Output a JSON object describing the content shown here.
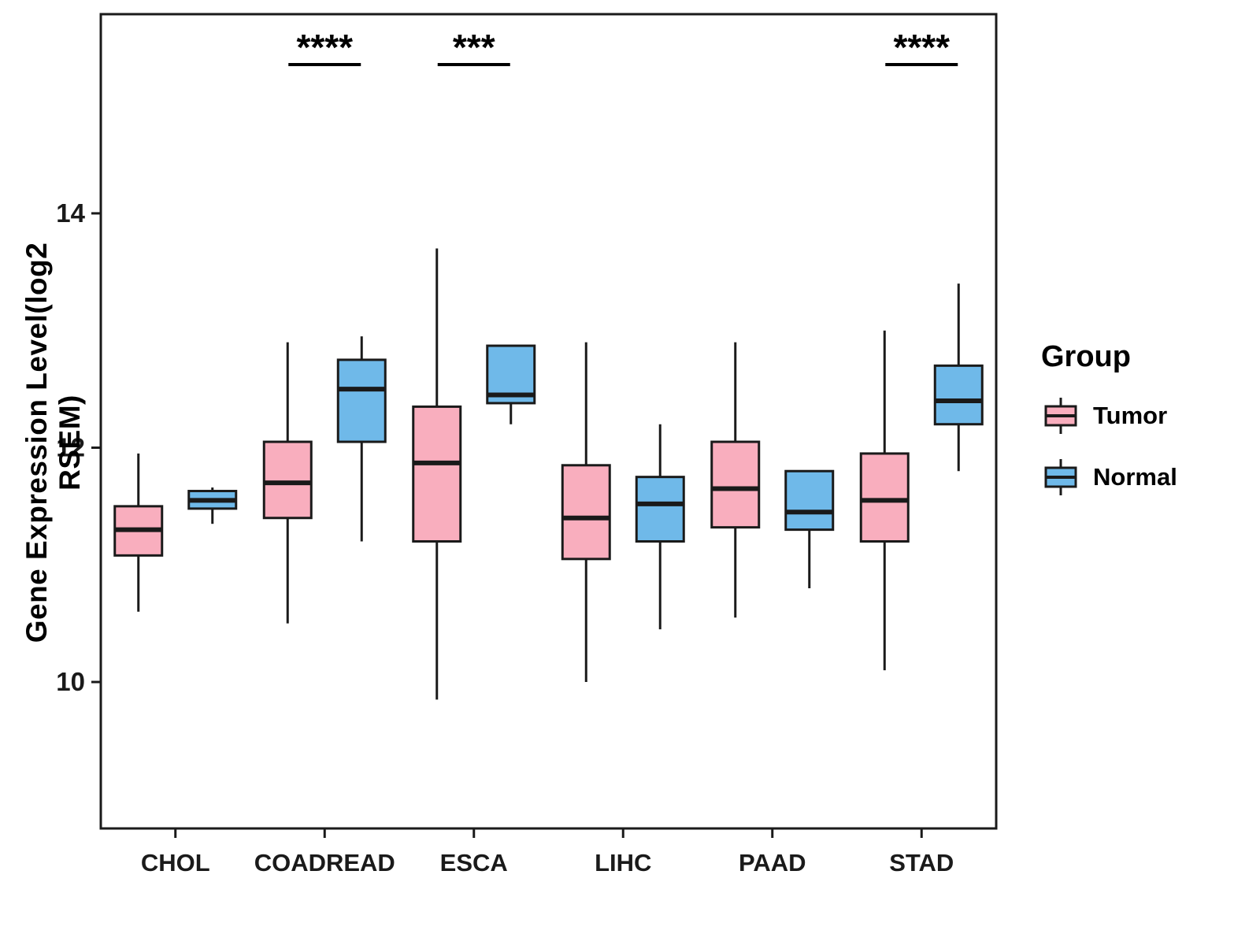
{
  "chart_data": {
    "type": "boxplot",
    "title": "",
    "xlabel": "",
    "ylabel": "Gene Expression Level(log2 RSEM)",
    "ylim": [
      8.75,
      15.7
    ],
    "yticks": [
      10,
      12,
      14
    ],
    "grid": false,
    "categories": [
      "CHOL",
      "COADREAD",
      "ESCA",
      "LIHC",
      "PAAD",
      "STAD"
    ],
    "legend": {
      "title": "Group",
      "position": "right",
      "entries": [
        {
          "label": "Tumor",
          "color": "#F9AEBE"
        },
        {
          "label": "Normal",
          "color": "#6FB9E9"
        }
      ]
    },
    "series": [
      {
        "name": "Tumor",
        "color": "#F9AEBE",
        "boxes": [
          {
            "category": "CHOL",
            "whisker_low": 10.6,
            "q1": 11.08,
            "median": 11.3,
            "q3": 11.5,
            "whisker_high": 11.95
          },
          {
            "category": "COADREAD",
            "whisker_low": 10.5,
            "q1": 11.4,
            "median": 11.7,
            "q3": 12.05,
            "whisker_high": 12.9
          },
          {
            "category": "ESCA",
            "whisker_low": 9.85,
            "q1": 11.2,
            "median": 11.87,
            "q3": 12.35,
            "whisker_high": 13.7
          },
          {
            "category": "LIHC",
            "whisker_low": 10.0,
            "q1": 11.05,
            "median": 11.4,
            "q3": 11.85,
            "whisker_high": 12.9
          },
          {
            "category": "PAAD",
            "whisker_low": 10.55,
            "q1": 11.32,
            "median": 11.65,
            "q3": 12.05,
            "whisker_high": 12.9
          },
          {
            "category": "STAD",
            "whisker_low": 10.1,
            "q1": 11.2,
            "median": 11.55,
            "q3": 11.95,
            "whisker_high": 13.0
          }
        ]
      },
      {
        "name": "Normal",
        "color": "#6FB9E9",
        "boxes": [
          {
            "category": "CHOL",
            "whisker_low": 11.35,
            "q1": 11.48,
            "median": 11.55,
            "q3": 11.63,
            "whisker_high": 11.66
          },
          {
            "category": "COADREAD",
            "whisker_low": 11.2,
            "q1": 12.05,
            "median": 12.5,
            "q3": 12.75,
            "whisker_high": 12.95
          },
          {
            "category": "ESCA",
            "whisker_low": 12.2,
            "q1": 12.38,
            "median": 12.45,
            "q3": 12.87,
            "whisker_high": 12.87
          },
          {
            "category": "LIHC",
            "whisker_low": 10.45,
            "q1": 11.2,
            "median": 11.52,
            "q3": 11.75,
            "whisker_high": 12.2
          },
          {
            "category": "PAAD",
            "whisker_low": 10.8,
            "q1": 11.3,
            "median": 11.45,
            "q3": 11.8,
            "whisker_high": 11.8
          },
          {
            "category": "STAD",
            "whisker_low": 11.8,
            "q1": 12.2,
            "median": 12.4,
            "q3": 12.7,
            "whisker_high": 13.4
          }
        ]
      }
    ],
    "annotations": [
      {
        "category": "COADREAD",
        "label": "****"
      },
      {
        "category": "ESCA",
        "label": "***"
      },
      {
        "category": "STAD",
        "label": "****"
      }
    ]
  }
}
